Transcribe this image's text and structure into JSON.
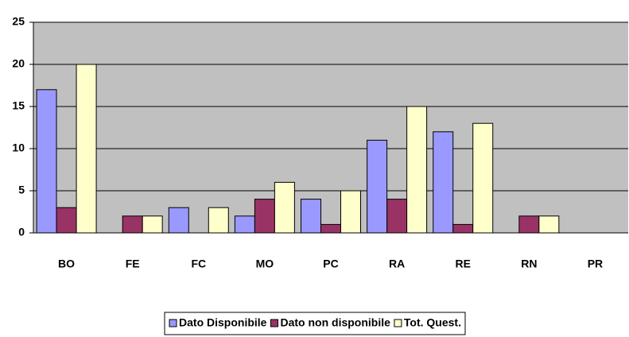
{
  "chart_data": {
    "type": "bar",
    "categories": [
      "BO",
      "FE",
      "FC",
      "MO",
      "PC",
      "RA",
      "RE",
      "RN",
      "PR"
    ],
    "series": [
      {
        "name": "Dato Disponibile",
        "color": "#9999ff",
        "values": [
          17,
          0,
          3,
          2,
          4,
          11,
          12,
          0,
          0
        ]
      },
      {
        "name": "Dato non disponibile",
        "color": "#993366",
        "values": [
          3,
          2,
          0,
          4,
          1,
          4,
          1,
          2,
          0
        ]
      },
      {
        "name": "Tot. Quest.",
        "color": "#ffffcc",
        "values": [
          20,
          2,
          3,
          6,
          5,
          15,
          13,
          2,
          0
        ]
      }
    ],
    "ylim": [
      0,
      25
    ],
    "yticks": [
      0,
      5,
      10,
      15,
      20,
      25
    ],
    "grid": true,
    "legend": "bottom"
  }
}
